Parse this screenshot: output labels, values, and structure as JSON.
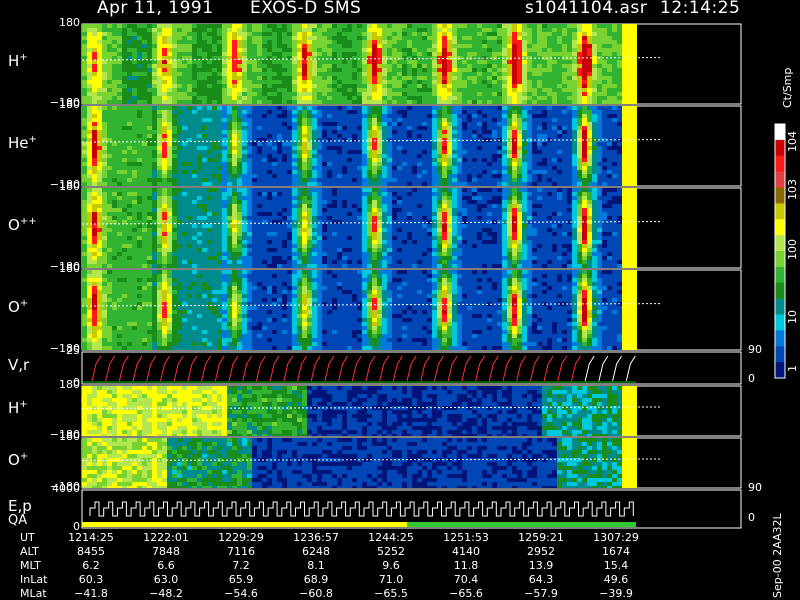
{
  "header": {
    "date": "Apr 11, 1991",
    "instrument": "EXOS-D SMS",
    "file": "s1041104.asr",
    "time": "12:14:25"
  },
  "colorbar": {
    "unit": "Ct/Smp",
    "labels": [
      {
        "text": "10^4",
        "value": 10000
      },
      {
        "text": "10^3",
        "value": 1000
      },
      {
        "text": "100",
        "value": 100
      },
      {
        "text": "10",
        "value": 10
      },
      {
        "text": "1",
        "value": 1
      }
    ],
    "colors": [
      "#ffffff",
      "#c80000",
      "#ff1a1a",
      "#e04040",
      "#8a6a00",
      "#c8c800",
      "#ffff00",
      "#b4e650",
      "#78d232",
      "#32b432",
      "#198c19",
      "#008c8c",
      "#00c8dc",
      "#0078dc",
      "#0046b4",
      "#00147a"
    ]
  },
  "side_ticks": {
    "right_90_a": "90",
    "right_0_a": "0",
    "right_90_b": "90",
    "right_0_b": "0"
  },
  "panels": [
    {
      "label": "H",
      "sup": "+",
      "ymax": "180",
      "ymin": "−180",
      "scheme": "h"
    },
    {
      "label": "He",
      "sup": "+",
      "ymax": "180",
      "ymin": "−180",
      "scheme": "he"
    },
    {
      "label": "O",
      "sup": "++",
      "ymax": "180",
      "ymin": "−180",
      "scheme": "o2"
    },
    {
      "label": "O",
      "sup": "+",
      "ymax": "180",
      "ymin": "−180",
      "scheme": "o1"
    },
    {
      "label": "V,r",
      "sup": "",
      "ymax": "25",
      "ymin": "0",
      "scheme": "line"
    },
    {
      "label": "H",
      "sup": "+",
      "ymax": "180",
      "ymin": "−180",
      "scheme": "h2"
    },
    {
      "label": "O",
      "sup": "+",
      "ymax": "180",
      "ymin": "−180",
      "scheme": "o3"
    },
    {
      "label": "E,p",
      "sup": "",
      "label2": "QA",
      "ymax": "4000",
      "ymin": "0",
      "scheme": "steps"
    }
  ],
  "ephemeris": {
    "rows": [
      {
        "name": "UT",
        "values": [
          "1214:25",
          "1222:01",
          "1229:29",
          "1236:57",
          "1244:25",
          "1251:53",
          "1259:21",
          "1307:29"
        ]
      },
      {
        "name": "ALT",
        "values": [
          "8455",
          "7848",
          "7116",
          "6248",
          "5252",
          "4140",
          "2952",
          "1674"
        ]
      },
      {
        "name": "MLT",
        "values": [
          "6.2",
          "6.6",
          "7.2",
          "8.1",
          "9.6",
          "11.8",
          "13.9",
          "15.4"
        ]
      },
      {
        "name": "InLat",
        "values": [
          "60.3",
          "63.0",
          "65.9",
          "68.9",
          "71.0",
          "70.4",
          "64.3",
          "49.6"
        ]
      },
      {
        "name": "MLat",
        "values": [
          "−41.8",
          "−48.2",
          "−54.6",
          "−60.8",
          "−65.5",
          "−65.6",
          "−57.9",
          "−39.9"
        ]
      }
    ]
  },
  "footer": {
    "stamp": "Sep-00 2AA32L"
  },
  "chart_data": {
    "type": "heatmap",
    "title": "Apr 11, 1991   EXOS-D SMS",
    "x": [
      "1214:25",
      "1222:01",
      "1229:29",
      "1236:57",
      "1244:25",
      "1251:53",
      "1259:21",
      "1307:29"
    ],
    "series": [
      {
        "name": "H+",
        "ylim": [
          -180,
          180
        ]
      },
      {
        "name": "He+",
        "ylim": [
          -180,
          180
        ]
      },
      {
        "name": "O++",
        "ylim": [
          -180,
          180
        ]
      },
      {
        "name": "O+",
        "ylim": [
          -180,
          180
        ]
      },
      {
        "name": "V,r",
        "ylim": [
          0,
          25
        ]
      },
      {
        "name": "H+",
        "ylim": [
          -180,
          180
        ]
      },
      {
        "name": "O+",
        "ylim": [
          -180,
          180
        ]
      },
      {
        "name": "E,p",
        "ylim": [
          0,
          4000
        ]
      }
    ],
    "colorbar_range": [
      1,
      10000
    ],
    "colorbar_scale": "log"
  }
}
